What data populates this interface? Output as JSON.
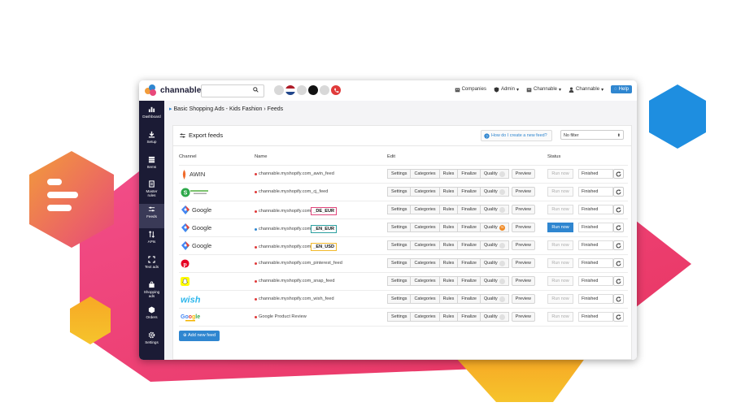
{
  "app": {
    "brand": "channable"
  },
  "colors": {
    "accent": "#2f86d0",
    "sidebar": "#1b1b35",
    "active_feed_tag_de": "#e0447a",
    "active_feed_tag_en": "#2aa0a0",
    "usd_tag": "#f2b92b"
  },
  "topnav": {
    "companies": "Companies",
    "admin": "Admin",
    "project": "Channable",
    "user": "Channable",
    "help": "Help"
  },
  "sidebar": {
    "items": [
      {
        "label": "Dashboard",
        "icon": "bar-chart-icon"
      },
      {
        "label": "Setup",
        "icon": "download-icon"
      },
      {
        "label": "Items",
        "icon": "layers-icon"
      },
      {
        "label": "Master rules",
        "icon": "document-icon"
      },
      {
        "label": "Feeds",
        "icon": "sliders-icon"
      },
      {
        "label": "APIs",
        "icon": "arrows-icon"
      },
      {
        "label": "Text ads",
        "icon": "expand-icon"
      },
      {
        "label": "Shopping ads",
        "icon": "shopping-bag-icon"
      },
      {
        "label": "Orders",
        "icon": "cube-icon"
      },
      {
        "label": "Settings",
        "icon": "gear-icon"
      }
    ]
  },
  "breadcrumb": {
    "project": "Basic Shopping Ads - Kids Fashion",
    "sep": "›",
    "page": "Feeds"
  },
  "panel": {
    "title": "Export feeds",
    "how": "How do I create a new feed?",
    "filter": "No filter"
  },
  "columns": {
    "channel": "Channel",
    "name": "Name",
    "edit": "Edit",
    "status": "Status"
  },
  "edit_buttons": {
    "settings": "Settings",
    "categories": "Categories",
    "rules": "Rules",
    "finalize": "Finalize",
    "quality": "Quality",
    "preview": "Preview"
  },
  "feeds": [
    {
      "channel": "AWIN",
      "logo": "awin-logo",
      "name": "channable.myshopify.com_awin_feed",
      "tag": "",
      "quality": "",
      "run": "Run now",
      "status": "Finished"
    },
    {
      "channel": "",
      "logo": "affiliate-logo",
      "name": "channable.myshopify.com_cj_feed",
      "tag": "",
      "quality": "",
      "run": "Run now",
      "status": "Finished"
    },
    {
      "channel": "Google",
      "logo": "google-shopping-logo",
      "name": "channable.myshopify.com",
      "tag": "_DE_EUR",
      "quality": "",
      "run": "Run now",
      "status": "Finished"
    },
    {
      "channel": "Google",
      "logo": "google-shopping-logo",
      "name": "channable.myshopify.com",
      "tag": "_EN_EUR",
      "quality": "75",
      "run": "Run now",
      "status": "Finished"
    },
    {
      "channel": "Google",
      "logo": "google-shopping-logo",
      "name": "channable.myshopify.com",
      "tag": "_EN_USD",
      "quality": "",
      "run": "Run now",
      "status": "Finished"
    },
    {
      "channel": "",
      "logo": "pinterest-logo",
      "name": "channable.myshopify.com_pinterest_feed",
      "tag": "",
      "quality": "",
      "run": "Run now",
      "status": "Finished"
    },
    {
      "channel": "",
      "logo": "snapchat-logo",
      "name": "channable.myshopify.com_snap_feed",
      "tag": "",
      "quality": "",
      "run": "Run now",
      "status": "Finished"
    },
    {
      "channel": "wish",
      "logo": "wish-logo",
      "name": "channable.myshopify.com_wish_feed",
      "tag": "",
      "quality": "",
      "run": "Run now",
      "status": "Finished"
    },
    {
      "channel": "Google",
      "logo": "google-review-logo",
      "name": "Google Product Review",
      "tag": "",
      "quality": "",
      "run": "Run now",
      "status": "Finished"
    }
  ],
  "add_feed": "Add new feed"
}
